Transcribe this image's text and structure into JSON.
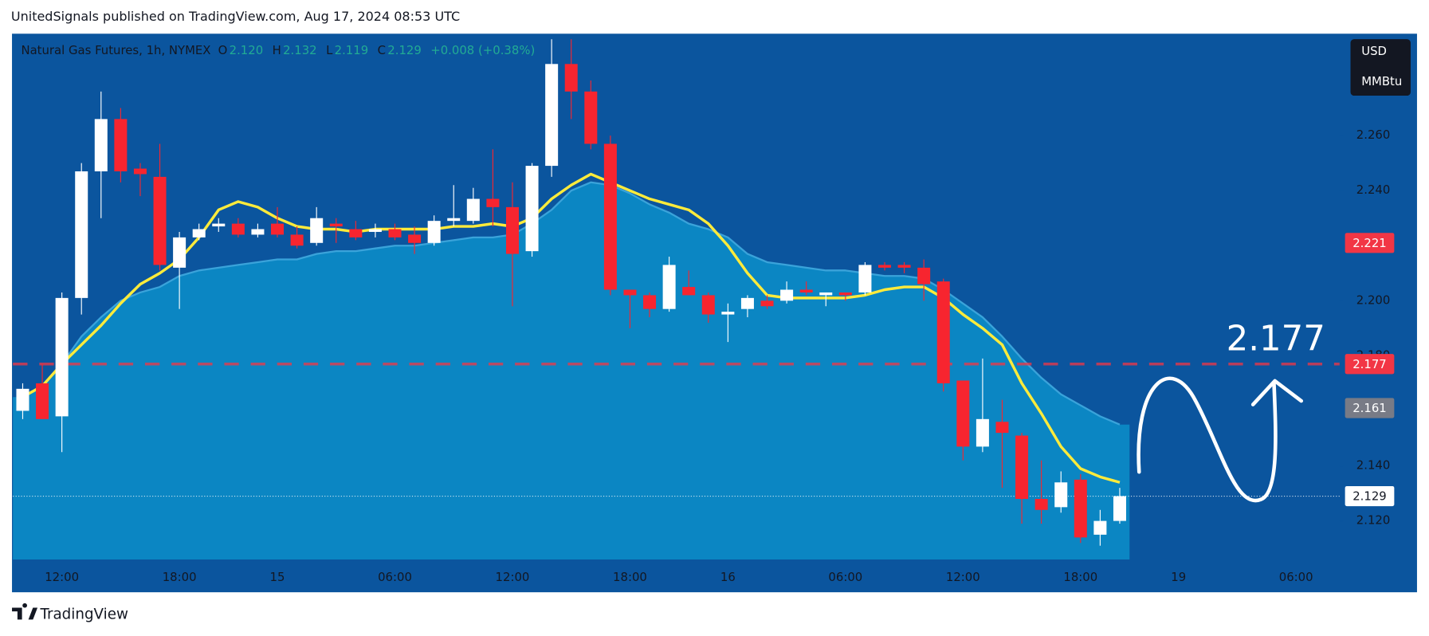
{
  "header": "UnitedSignals published on TradingView.com, Aug 17, 2024 08:53 UTC",
  "footer": "TradingView",
  "chart_data": {
    "type": "candlestick",
    "title": "Natural Gas Futures, 1h, NYMEX",
    "ohlc_legend": [
      {
        "key": "O",
        "value": "2.120"
      },
      {
        "key": "H",
        "value": "2.132"
      },
      {
        "key": "L",
        "value": "2.119"
      },
      {
        "key": "C",
        "value": "2.129"
      }
    ],
    "change": "+0.008 (+0.38%)",
    "currency": "USD",
    "unit": "MMBtu",
    "categories": [
      null,
      null,
      "12:00",
      null,
      null,
      null,
      null,
      null,
      "18:00",
      null,
      null,
      null,
      null,
      "15",
      null,
      null,
      null,
      null,
      null,
      "06:00",
      null,
      null,
      null,
      null,
      null,
      "12:00",
      null,
      null,
      null,
      null,
      null,
      "18:00",
      null,
      null,
      null,
      null,
      "16",
      null,
      null,
      null,
      null,
      null,
      "06:00",
      null,
      null,
      null,
      null,
      null,
      "12:00",
      null,
      null,
      null,
      null,
      null,
      "18:00",
      null,
      null,
      null,
      null,
      "19",
      null,
      null,
      null,
      null,
      null,
      "06:00"
    ],
    "open": [
      2.16,
      2.17,
      2.158,
      2.201,
      2.247,
      2.266,
      2.248,
      2.245,
      2.212,
      2.223,
      2.227,
      2.228,
      2.224,
      2.228,
      2.224,
      2.221,
      2.228,
      2.226,
      2.225,
      2.226,
      2.224,
      2.221,
      2.229,
      2.229,
      2.237,
      2.234,
      2.218,
      2.249,
      2.286,
      2.276,
      2.257,
      2.204,
      2.202,
      2.197,
      2.205,
      2.202,
      2.195,
      2.197,
      2.2,
      2.2,
      2.204,
      2.202,
      2.203,
      2.203,
      2.213,
      2.213,
      2.212,
      2.207,
      2.171,
      2.147,
      2.156,
      2.151,
      2.128,
      2.125,
      2.135,
      2.115,
      2.12,
      null,
      null,
      null,
      null,
      null,
      null,
      null,
      null,
      null
    ],
    "high": [
      2.17,
      2.177,
      2.203,
      2.25,
      2.276,
      2.27,
      2.25,
      2.257,
      2.225,
      2.228,
      2.23,
      2.23,
      2.228,
      2.234,
      2.227,
      2.234,
      2.23,
      2.229,
      2.228,
      2.228,
      2.227,
      2.231,
      2.242,
      2.241,
      2.255,
      2.243,
      2.25,
      2.295,
      2.295,
      2.28,
      2.26,
      2.204,
      2.203,
      2.216,
      2.211,
      2.203,
      2.199,
      2.202,
      2.202,
      2.207,
      2.207,
      2.203,
      2.203,
      2.214,
      2.214,
      2.214,
      2.215,
      2.208,
      2.171,
      2.179,
      2.164,
      2.152,
      2.142,
      2.138,
      2.137,
      2.124,
      2.132,
      null,
      null,
      null,
      null,
      null,
      null,
      null,
      null,
      null
    ],
    "low": [
      2.157,
      2.157,
      2.145,
      2.195,
      2.23,
      2.243,
      2.238,
      2.211,
      2.197,
      2.222,
      2.225,
      2.223,
      2.223,
      2.223,
      2.219,
      2.22,
      2.221,
      2.222,
      2.223,
      2.222,
      2.217,
      2.22,
      2.227,
      2.228,
      2.227,
      2.198,
      2.216,
      2.245,
      2.266,
      2.255,
      2.202,
      2.19,
      2.194,
      2.196,
      2.202,
      2.192,
      2.185,
      2.194,
      2.197,
      2.199,
      2.202,
      2.198,
      2.2,
      2.202,
      2.211,
      2.21,
      2.2,
      2.167,
      2.142,
      2.145,
      2.132,
      2.119,
      2.119,
      2.123,
      2.112,
      2.111,
      2.119,
      null,
      null,
      null,
      null,
      null,
      null,
      null,
      null,
      null
    ],
    "close": [
      2.168,
      2.157,
      2.201,
      2.247,
      2.266,
      2.247,
      2.246,
      2.213,
      2.223,
      2.226,
      2.228,
      2.224,
      2.226,
      2.224,
      2.22,
      2.23,
      2.227,
      2.223,
      2.226,
      2.223,
      2.221,
      2.229,
      2.23,
      2.237,
      2.234,
      2.217,
      2.249,
      2.286,
      2.276,
      2.257,
      2.204,
      2.202,
      2.197,
      2.213,
      2.202,
      2.195,
      2.196,
      2.201,
      2.198,
      2.204,
      2.203,
      2.203,
      2.202,
      2.213,
      2.212,
      2.212,
      2.206,
      2.17,
      2.147,
      2.157,
      2.152,
      2.128,
      2.124,
      2.134,
      2.114,
      2.12,
      2.129,
      null,
      null,
      null,
      null,
      null,
      null,
      null,
      null,
      null
    ],
    "up_color": "#ffffff",
    "down_color": "#f7252f",
    "moving_averages": [
      {
        "color": "#3aa3da",
        "fill": "#0b86c3",
        "values": [
          2.165,
          2.169,
          2.177,
          2.187,
          2.194,
          2.2,
          2.203,
          2.205,
          2.209,
          2.211,
          2.212,
          2.213,
          2.214,
          2.215,
          2.215,
          2.217,
          2.218,
          2.218,
          2.219,
          2.22,
          2.22,
          2.221,
          2.222,
          2.223,
          2.223,
          2.224,
          2.228,
          2.233,
          2.24,
          2.243,
          2.242,
          2.239,
          2.235,
          2.232,
          2.228,
          2.226,
          2.223,
          2.217,
          2.214,
          2.213,
          2.212,
          2.211,
          2.211,
          2.21,
          2.209,
          2.209,
          2.208,
          2.204,
          2.199,
          2.194,
          2.187,
          2.179,
          2.172,
          2.166,
          2.162,
          2.158,
          2.155,
          null,
          null,
          null,
          null,
          null,
          null,
          null,
          null,
          null
        ]
      },
      {
        "color": "#ffeb3b",
        "values": [
          2.165,
          2.169,
          2.177,
          2.184,
          2.191,
          2.199,
          2.206,
          2.21,
          2.215,
          2.223,
          2.233,
          2.236,
          2.234,
          2.23,
          2.227,
          2.226,
          2.226,
          2.225,
          2.226,
          2.226,
          2.226,
          2.226,
          2.227,
          2.227,
          2.228,
          2.227,
          2.23,
          2.237,
          2.242,
          2.246,
          2.243,
          2.24,
          2.237,
          2.235,
          2.233,
          2.228,
          2.22,
          2.21,
          2.202,
          2.201,
          2.201,
          2.201,
          2.201,
          2.202,
          2.204,
          2.205,
          2.205,
          2.201,
          2.195,
          2.19,
          2.184,
          2.17,
          2.159,
          2.147,
          2.139,
          2.136,
          2.134,
          null,
          null,
          null,
          null,
          null,
          null,
          null,
          null,
          null
        ]
      }
    ],
    "horizontal_line": {
      "value": 2.177,
      "color": "#f23645"
    },
    "annotation": "2.177",
    "price_labels": [
      {
        "value": 2.221,
        "label": "2.221",
        "color": "#f23645"
      },
      {
        "value": 2.177,
        "label": "2.177",
        "color": "#f23645"
      },
      {
        "value": 2.161,
        "label": "2.161",
        "color": "#787b86"
      },
      {
        "value": 2.129,
        "label": "2.129",
        "color": "#ffffff"
      }
    ],
    "ylim": [
      2.106,
      2.297
    ],
    "yticks": [
      {
        "value": 2.12,
        "label": "2.120"
      },
      {
        "value": 2.14,
        "label": "2.140"
      },
      {
        "value": 2.18,
        "label": "2.180"
      },
      {
        "value": 2.2,
        "label": "2.200"
      },
      {
        "value": 2.24,
        "label": "2.240"
      },
      {
        "value": 2.26,
        "label": "2.260"
      }
    ]
  }
}
